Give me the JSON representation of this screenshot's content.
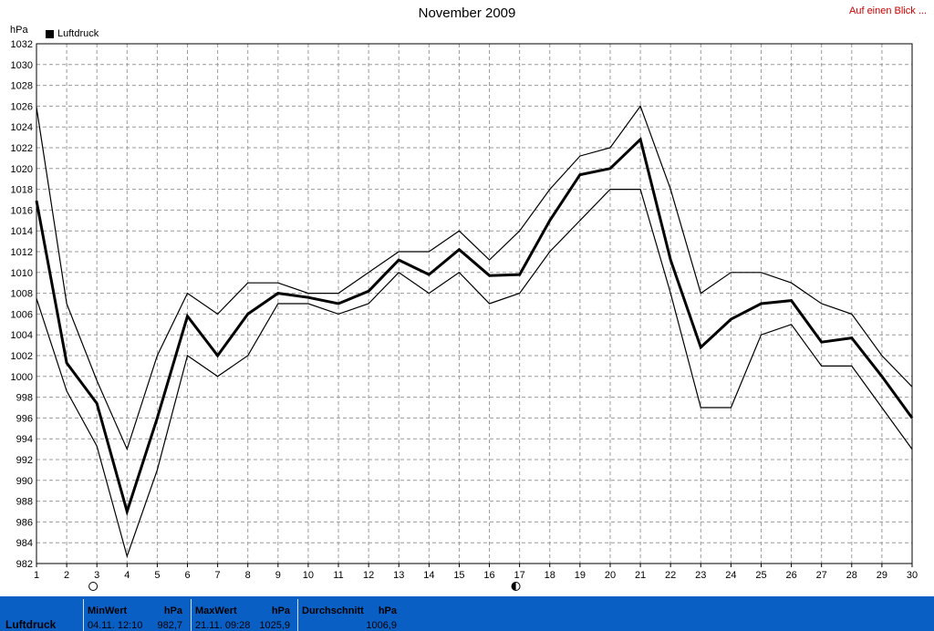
{
  "header": {
    "title": "November 2009",
    "quick_link": "Auf einen Blick ..."
  },
  "chart_data": {
    "type": "line",
    "title": "November 2009",
    "ylabel": "hPa",
    "xlabel": "",
    "ylim": [
      982,
      1032
    ],
    "yticks": [
      982,
      984,
      986,
      988,
      990,
      992,
      994,
      996,
      998,
      1000,
      1002,
      1004,
      1006,
      1008,
      1010,
      1012,
      1014,
      1016,
      1018,
      1020,
      1022,
      1024,
      1026,
      1028,
      1030,
      1032
    ],
    "x": [
      1,
      2,
      3,
      4,
      5,
      6,
      7,
      8,
      9,
      10,
      11,
      12,
      13,
      14,
      15,
      16,
      17,
      18,
      19,
      20,
      21,
      22,
      23,
      24,
      25,
      26,
      27,
      28,
      29,
      30
    ],
    "grid": true,
    "legend": {
      "position": "top-left",
      "entries": [
        "Luftdruck"
      ]
    },
    "series": [
      {
        "name": "Luftdruck",
        "role": "avg",
        "values": [
          1016.9,
          1001.3,
          997.4,
          987.0,
          996.0,
          1005.8,
          1002.0,
          1006.0,
          1008.0,
          1007.6,
          1007.0,
          1008.2,
          1011.2,
          1009.8,
          1012.2,
          1009.7,
          1009.8,
          1015.0,
          1019.4,
          1020.0,
          1022.8,
          1011.2,
          1002.8,
          1005.5,
          1007.0,
          1007.3,
          1003.3,
          1003.7,
          1000.0,
          996.0
        ]
      },
      {
        "role": "max",
        "values": [
          1025.9,
          1007.0,
          999.6,
          993.0,
          1002.0,
          1008.0,
          1006.0,
          1009.0,
          1009.0,
          1008.0,
          1008.0,
          1010.0,
          1012.0,
          1012.0,
          1014.0,
          1011.2,
          1014.0,
          1018.0,
          1021.2,
          1022.0,
          1026.0,
          1018.0,
          1008.0,
          1010.0,
          1010.0,
          1009.0,
          1007.0,
          1006.0,
          1002.0,
          999.0
        ]
      },
      {
        "role": "min",
        "values": [
          1007.5,
          998.6,
          993.3,
          982.7,
          991.0,
          1002.0,
          1000.0,
          1002.0,
          1007.0,
          1007.0,
          1006.0,
          1007.0,
          1010.0,
          1008.0,
          1010.0,
          1007.0,
          1008.0,
          1012.0,
          1015.0,
          1018.0,
          1018.0,
          1008.0,
          997.0,
          997.0,
          1004.0,
          1005.0,
          1001.0,
          1001.0,
          997.0,
          993.0
        ]
      }
    ],
    "moon_phases": [
      {
        "day": 2,
        "phase": "full-moon"
      },
      {
        "day": 16,
        "phase": "new-moon"
      }
    ]
  },
  "stats": {
    "label": "Luftdruck",
    "min": {
      "header": "MinWert",
      "unit": "hPa",
      "date": "04.11.  12:10",
      "value": "982,7"
    },
    "max": {
      "header": "MaxWert",
      "unit": "hPa",
      "date": "21.11.  09:28",
      "value": "1025,9"
    },
    "avg": {
      "header": "Durchschnitt",
      "unit": "hPa",
      "value": "1006,9"
    }
  }
}
